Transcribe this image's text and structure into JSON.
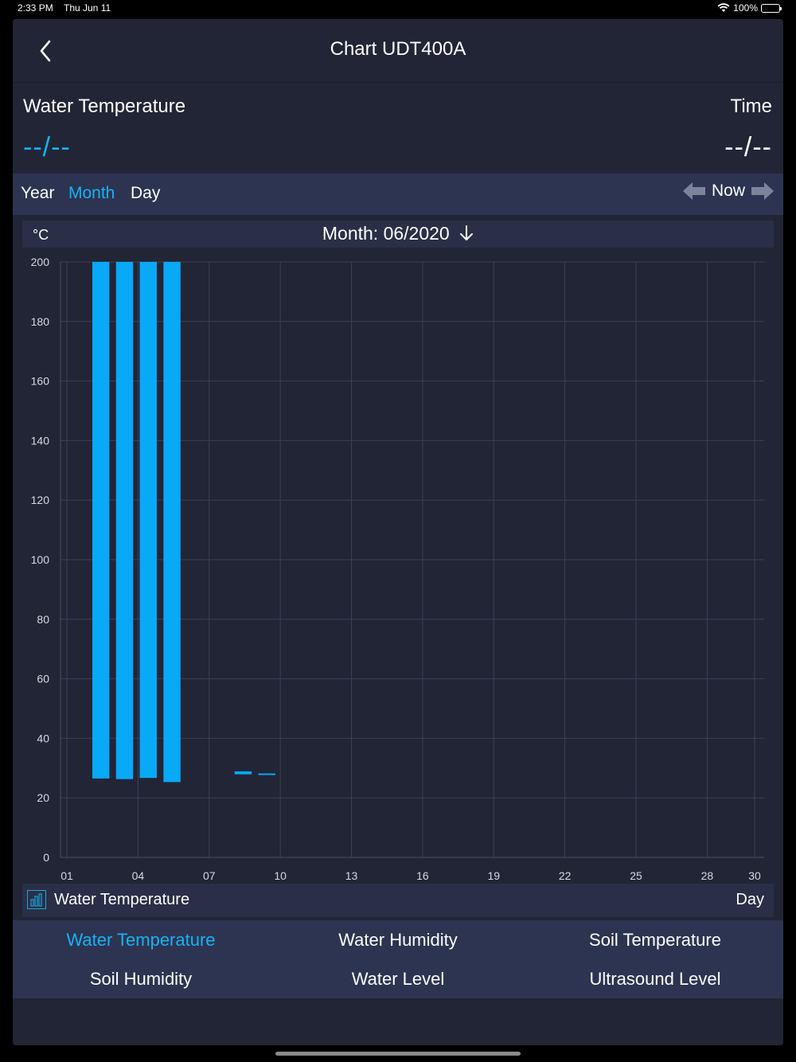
{
  "status_bar": {
    "time": "2:33 PM",
    "date": "Thu Jun 11",
    "battery": "100%"
  },
  "nav": {
    "title": "Chart UDT400A",
    "back_icon": "chevron-left-icon"
  },
  "readout": {
    "left_label": "Water Temperature",
    "left_value": "--/--",
    "right_label": "Time",
    "right_value": "--/--"
  },
  "period": {
    "tabs": [
      {
        "label": "Year",
        "active": false
      },
      {
        "label": "Month",
        "active": true
      },
      {
        "label": "Day",
        "active": false
      }
    ],
    "now_label": "Now"
  },
  "chart_header": {
    "unit": "°C",
    "month_label": "Month: 06/2020"
  },
  "legend": {
    "series_name": "Water Temperature",
    "x_unit": "Day"
  },
  "sensors": [
    {
      "label": "Water Temperature",
      "active": true
    },
    {
      "label": "Water Humidity",
      "active": false
    },
    {
      "label": "Soil Temperature",
      "active": false
    },
    {
      "label": "Soil Humidity",
      "active": false
    },
    {
      "label": "Water Level",
      "active": false
    },
    {
      "label": "Ultrasound Level",
      "active": false
    }
  ],
  "colors": {
    "accent": "#17b3f2",
    "bar": "#08a9f7",
    "panel": "#222536",
    "bar_band": "#2d3452"
  },
  "chart_data": {
    "type": "bar",
    "ylabel": "°C",
    "xlabel": "Day",
    "ylim": [
      0,
      200
    ],
    "xlim": [
      1,
      30
    ],
    "yticks": [
      0,
      20,
      40,
      60,
      80,
      100,
      120,
      140,
      160,
      180,
      200
    ],
    "xticks": [
      "01",
      "04",
      "07",
      "10",
      "13",
      "16",
      "19",
      "22",
      "25",
      "28",
      "30"
    ],
    "grid": true,
    "series": [
      {
        "name": "Water Temperature",
        "bars": [
          {
            "day": 2,
            "low": 26.5,
            "high": 200
          },
          {
            "day": 3,
            "low": 26.3,
            "high": 200
          },
          {
            "day": 4,
            "low": 26.7,
            "high": 200
          },
          {
            "day": 5,
            "low": 25.3,
            "high": 200
          },
          {
            "day": 8,
            "low": 27.9,
            "high": 28.9
          },
          {
            "day": 9,
            "low": 28.0,
            "high": 28.2
          }
        ]
      }
    ]
  }
}
